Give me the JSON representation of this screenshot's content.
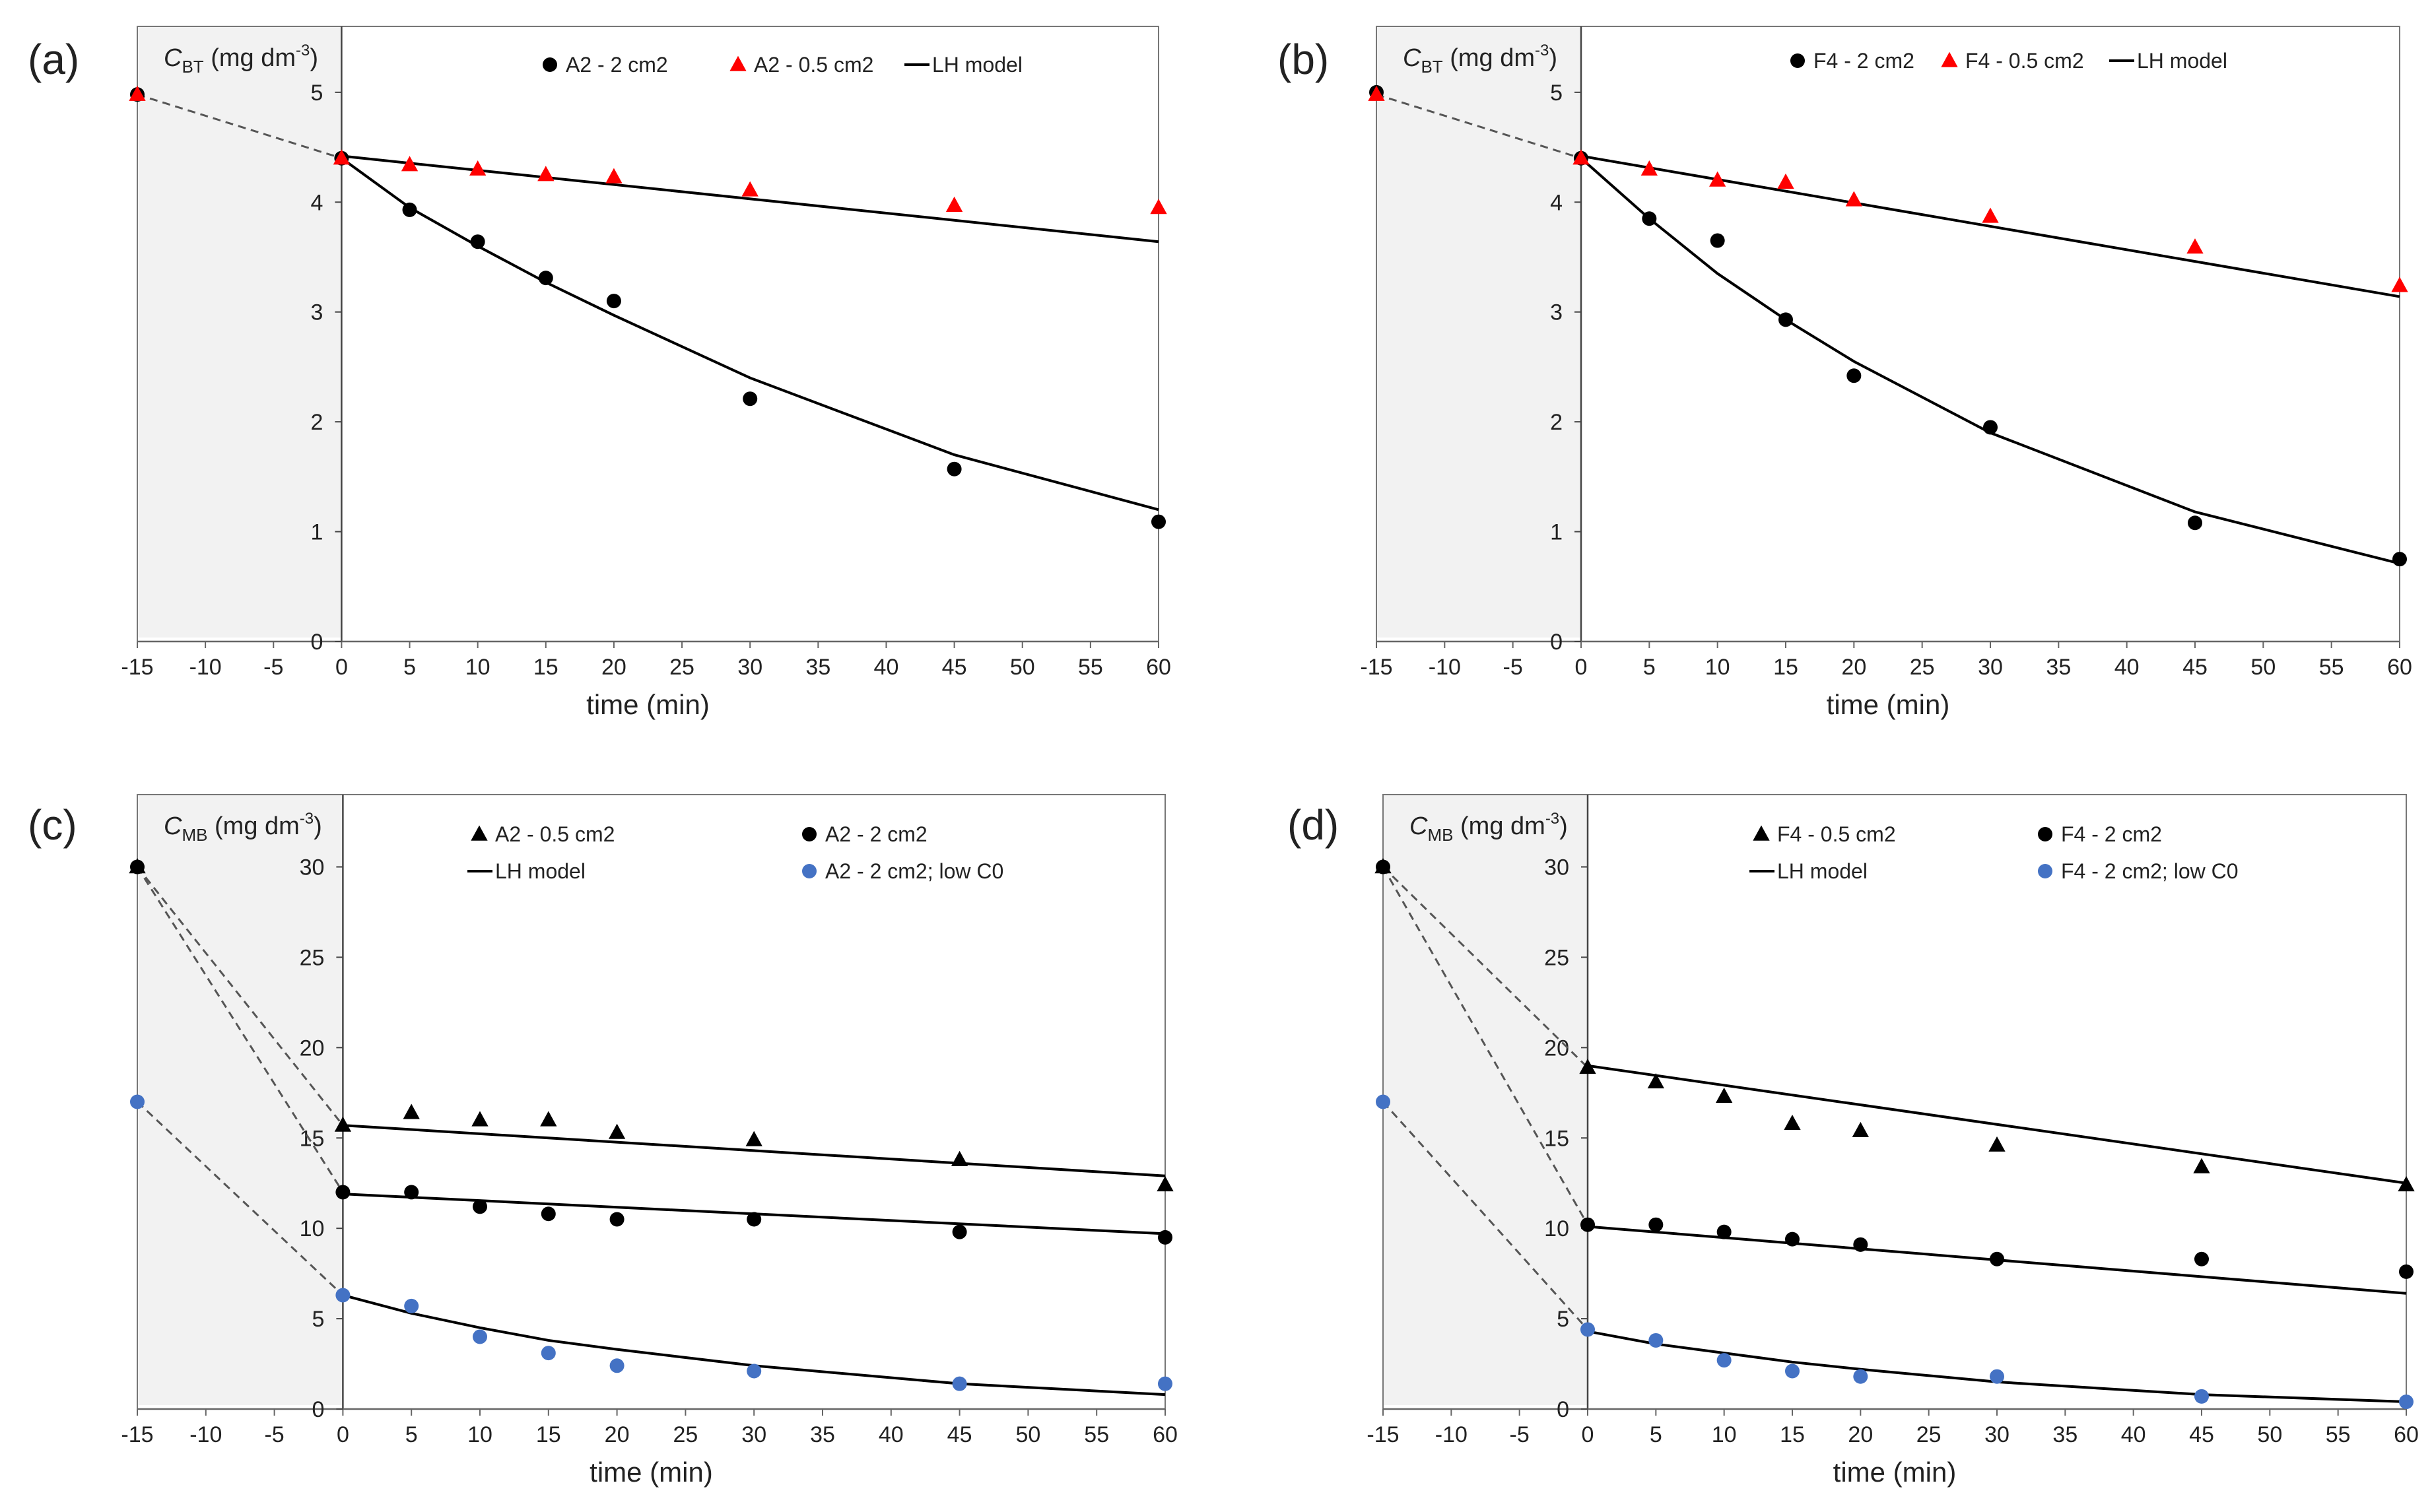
{
  "chart_data": [
    {
      "id": "a",
      "panel_label": "(a)",
      "type": "scatter",
      "ylabel": {
        "symbol": "C",
        "sub": "BT",
        "unit": " (mg dm",
        "sup": "-3",
        "close": ")"
      },
      "xlabel": "time (min)",
      "xlim": [
        -15,
        60
      ],
      "ylim": [
        0,
        5.6
      ],
      "xticks": [
        -15,
        -10,
        -5,
        0,
        5,
        10,
        15,
        20,
        25,
        30,
        35,
        40,
        45,
        50,
        55,
        60
      ],
      "yticks": [
        0,
        1,
        2,
        3,
        4,
        5
      ],
      "shaded_region": [
        -15,
        0
      ],
      "series": [
        {
          "name": "A2 - 2 cm2",
          "marker": "circle",
          "color": "#000000",
          "x": [
            -15,
            0,
            5,
            10,
            15,
            20,
            30,
            45,
            60
          ],
          "y": [
            4.98,
            4.4,
            3.93,
            3.64,
            3.31,
            3.1,
            2.21,
            1.57,
            1.09
          ]
        },
        {
          "name": "A2 - 0.5 cm2",
          "marker": "triangle",
          "color": "#ff0000",
          "x": [
            -15,
            0,
            5,
            10,
            15,
            20,
            30,
            45,
            60
          ],
          "y": [
            4.98,
            4.4,
            4.34,
            4.3,
            4.25,
            4.23,
            4.11,
            3.97,
            3.95
          ]
        },
        {
          "name": "LH model",
          "marker": "line",
          "color": "#000000",
          "lines": [
            {
              "x": [
                0,
                5,
                10,
                15,
                20,
                30,
                45,
                60
              ],
              "y": [
                4.4,
                3.95,
                3.6,
                3.27,
                2.97,
                2.4,
                1.7,
                1.2
              ]
            },
            {
              "x": [
                0,
                60
              ],
              "y": [
                4.42,
                3.64
              ]
            }
          ]
        }
      ],
      "dashed": [
        {
          "x": [
            -15,
            0
          ],
          "y": [
            4.98,
            4.4
          ]
        }
      ],
      "legend_layout": [
        [
          "A2 - 2 cm2",
          "A2 - 0.5 cm2",
          "LH model"
        ]
      ]
    },
    {
      "id": "b",
      "panel_label": "(b)",
      "type": "scatter",
      "ylabel": {
        "symbol": "C",
        "sub": "BT",
        "unit": " (mg dm",
        "sup": "-3",
        "close": ")"
      },
      "xlabel": "time (min)",
      "xlim": [
        -15,
        60
      ],
      "ylim": [
        0,
        5.6
      ],
      "xticks": [
        -15,
        -10,
        -5,
        0,
        5,
        10,
        15,
        20,
        25,
        30,
        35,
        40,
        45,
        50,
        55,
        60
      ],
      "yticks": [
        0,
        1,
        2,
        3,
        4,
        5
      ],
      "shaded_region": [
        -15,
        0
      ],
      "series": [
        {
          "name": "F4 - 2 cm2",
          "marker": "circle",
          "color": "#000000",
          "x": [
            -15,
            0,
            5,
            10,
            15,
            20,
            30,
            45,
            60
          ],
          "y": [
            5.0,
            4.4,
            3.85,
            3.65,
            2.93,
            2.42,
            1.95,
            1.08,
            0.75
          ]
        },
        {
          "name": "F4 - 0.5 cm2",
          "marker": "triangle",
          "color": "#ff0000",
          "x": [
            -15,
            0,
            5,
            10,
            15,
            20,
            30,
            45,
            60
          ],
          "y": [
            4.98,
            4.4,
            4.3,
            4.2,
            4.18,
            4.02,
            3.87,
            3.59,
            3.24
          ]
        },
        {
          "name": "LH model",
          "marker": "line",
          "color": "#000000",
          "lines": [
            {
              "x": [
                0,
                5,
                10,
                15,
                20,
                30,
                45,
                60
              ],
              "y": [
                4.4,
                3.85,
                3.35,
                2.93,
                2.55,
                1.9,
                1.18,
                0.71
              ]
            },
            {
              "x": [
                0,
                60
              ],
              "y": [
                4.42,
                3.14
              ]
            }
          ]
        }
      ],
      "dashed": [
        {
          "x": [
            -15,
            0
          ],
          "y": [
            4.98,
            4.4
          ]
        }
      ],
      "legend_layout": [
        [
          "F4 - 2 cm2",
          "F4 - 0.5 cm2",
          "LH model"
        ]
      ]
    },
    {
      "id": "c",
      "panel_label": "(c)",
      "type": "scatter",
      "ylabel": {
        "symbol": "C",
        "sub": "MB",
        "unit": " (mg dm",
        "sup": "-3",
        "close": ")"
      },
      "xlabel": "time (min)",
      "xlim": [
        -15,
        60
      ],
      "ylim": [
        0,
        34
      ],
      "xticks": [
        -15,
        -10,
        -5,
        0,
        5,
        10,
        15,
        20,
        25,
        30,
        35,
        40,
        45,
        50,
        55,
        60
      ],
      "yticks": [
        0,
        5,
        10,
        15,
        20,
        25,
        30
      ],
      "shaded_region": [
        -15,
        0
      ],
      "series": [
        {
          "name": "A2 - 0.5 cm2",
          "marker": "triangle",
          "color": "#000000",
          "x": [
            -15,
            0,
            5,
            10,
            15,
            20,
            30,
            45,
            60
          ],
          "y": [
            30.0,
            15.7,
            16.4,
            16.0,
            16.0,
            15.3,
            14.9,
            13.8,
            12.4
          ]
        },
        {
          "name": "A2 - 2 cm2",
          "marker": "circle",
          "color": "#000000",
          "x": [
            -15,
            0,
            5,
            10,
            15,
            20,
            30,
            45,
            60
          ],
          "y": [
            30.0,
            12.0,
            12.0,
            11.2,
            10.8,
            10.5,
            10.5,
            9.8,
            9.5
          ]
        },
        {
          "name": "LH model",
          "marker": "line",
          "color": "#000000",
          "lines": [
            {
              "x": [
                0,
                60
              ],
              "y": [
                15.7,
                12.9
              ]
            },
            {
              "x": [
                0,
                60
              ],
              "y": [
                11.9,
                9.7
              ]
            },
            {
              "x": [
                0,
                5,
                10,
                15,
                20,
                30,
                45,
                60
              ],
              "y": [
                6.3,
                5.3,
                4.5,
                3.8,
                3.3,
                2.4,
                1.4,
                0.8
              ]
            }
          ]
        },
        {
          "name": "A2 - 2 cm2; low C0",
          "marker": "circle",
          "color": "#4472c4",
          "x": [
            -15,
            0,
            5,
            10,
            15,
            20,
            30,
            45,
            60
          ],
          "y": [
            17.0,
            6.3,
            5.7,
            4.0,
            3.1,
            2.4,
            2.1,
            1.4,
            1.4
          ]
        }
      ],
      "dashed": [
        {
          "x": [
            -15,
            0
          ],
          "y": [
            30.0,
            15.7
          ]
        },
        {
          "x": [
            -15,
            0
          ],
          "y": [
            30.0,
            12.0
          ]
        },
        {
          "x": [
            -15,
            0
          ],
          "y": [
            17.0,
            6.3
          ]
        }
      ],
      "legend_layout": [
        [
          "A2 - 0.5 cm2",
          "A2 - 2 cm2"
        ],
        [
          "LH model",
          "A2 - 2 cm2; low C0"
        ]
      ]
    },
    {
      "id": "d",
      "panel_label": "(d)",
      "type": "scatter",
      "ylabel": {
        "symbol": "C",
        "sub": "MB",
        "unit": " (mg dm",
        "sup": "-3",
        "close": ")"
      },
      "xlabel": "time (min)",
      "xlim": [
        -15,
        60
      ],
      "ylim": [
        0,
        34
      ],
      "xticks": [
        -15,
        -10,
        -5,
        0,
        5,
        10,
        15,
        20,
        25,
        30,
        35,
        40,
        45,
        50,
        55,
        60
      ],
      "yticks": [
        0,
        5,
        10,
        15,
        20,
        25,
        30
      ],
      "shaded_region": [
        -15,
        0
      ],
      "series": [
        {
          "name": "F4 - 0.5 cm2",
          "marker": "triangle",
          "color": "#000000",
          "x": [
            -15,
            0,
            5,
            10,
            15,
            20,
            30,
            45,
            60
          ],
          "y": [
            30.0,
            18.9,
            18.1,
            17.3,
            15.8,
            15.4,
            14.6,
            13.4,
            12.4
          ]
        },
        {
          "name": "F4 - 2 cm2",
          "marker": "circle",
          "color": "#000000",
          "x": [
            -15,
            0,
            5,
            10,
            15,
            20,
            30,
            45,
            60
          ],
          "y": [
            30.0,
            10.2,
            10.2,
            9.8,
            9.4,
            9.1,
            8.3,
            8.3,
            7.6
          ]
        },
        {
          "name": "LH model",
          "marker": "line",
          "color": "#000000",
          "lines": [
            {
              "x": [
                0,
                60
              ],
              "y": [
                19.0,
                12.5
              ]
            },
            {
              "x": [
                0,
                60
              ],
              "y": [
                10.1,
                6.4
              ]
            },
            {
              "x": [
                0,
                5,
                10,
                15,
                20,
                30,
                45,
                60
              ],
              "y": [
                4.3,
                3.6,
                3.1,
                2.6,
                2.2,
                1.5,
                0.8,
                0.4
              ]
            }
          ]
        },
        {
          "name": "F4 - 2 cm2; low C0",
          "marker": "circle",
          "color": "#4472c4",
          "x": [
            -15,
            0,
            5,
            10,
            15,
            20,
            30,
            45,
            60
          ],
          "y": [
            17.0,
            4.4,
            3.8,
            2.7,
            2.1,
            1.8,
            1.8,
            0.7,
            0.4
          ]
        }
      ],
      "dashed": [
        {
          "x": [
            -15,
            0
          ],
          "y": [
            30.0,
            18.9
          ]
        },
        {
          "x": [
            -15,
            0
          ],
          "y": [
            30.0,
            10.2
          ]
        },
        {
          "x": [
            -15,
            0
          ],
          "y": [
            17.0,
            4.4
          ]
        }
      ],
      "legend_layout": [
        [
          "F4 - 0.5 cm2",
          "F4 - 2 cm2"
        ],
        [
          "LH model",
          "F4 - 2 cm2; low C0"
        ]
      ]
    }
  ]
}
